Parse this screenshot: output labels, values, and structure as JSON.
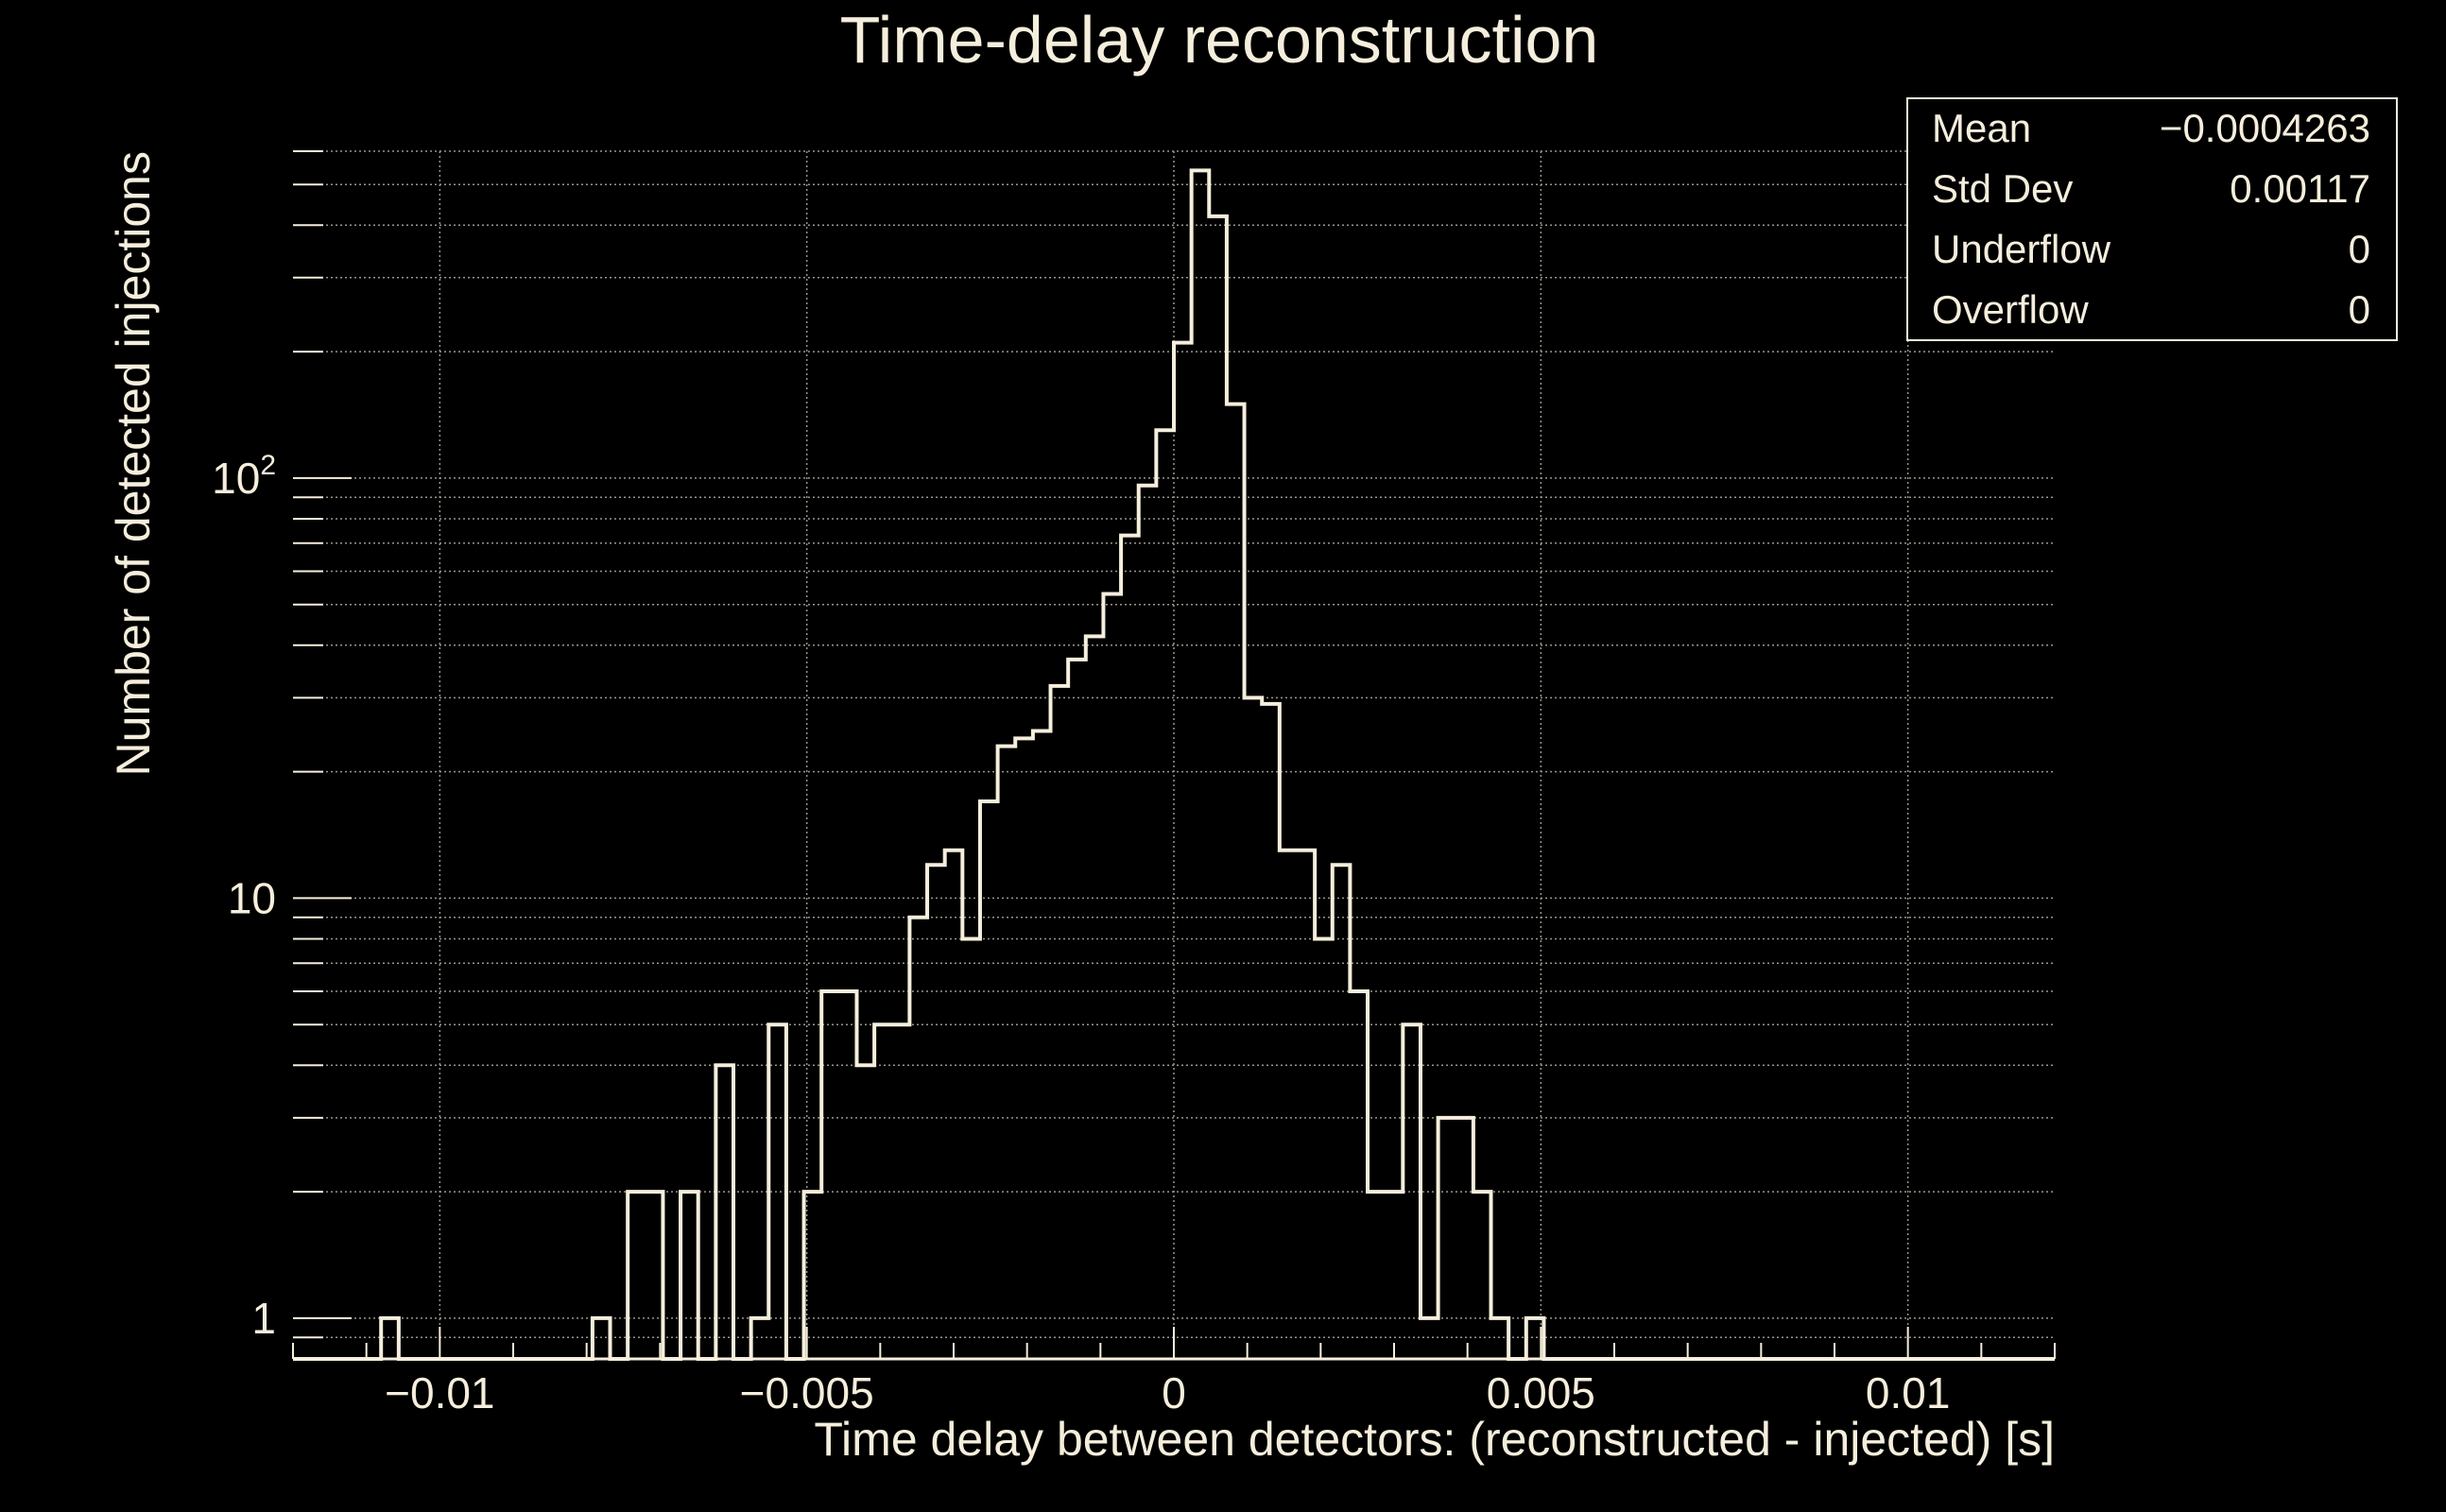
{
  "colors": {
    "background": "#000000",
    "foreground": "#f5eedc",
    "grid": "#9a968a"
  },
  "chart_data": {
    "type": "histogram",
    "title": "Time-delay reconstruction",
    "xlabel": "Time delay between detectors: (reconstructed - injected) [s]",
    "ylabel": "Number of detected injections",
    "xlim": [
      -0.012,
      0.012
    ],
    "ylim": [
      0.8,
      600
    ],
    "y_scale": "log",
    "grid": true,
    "x_ticks": [
      {
        "value": -0.01,
        "label": "−0.01"
      },
      {
        "value": -0.005,
        "label": "−0.005"
      },
      {
        "value": 0,
        "label": "0"
      },
      {
        "value": 0.005,
        "label": "0.005"
      },
      {
        "value": 0.01,
        "label": "0.01"
      }
    ],
    "y_ticks": [
      {
        "value": 1,
        "label": "1"
      },
      {
        "value": 10,
        "label": "10"
      },
      {
        "value": 100,
        "label": "10",
        "exponent": "2"
      }
    ],
    "bin_width": 0.00024,
    "bins_start": -0.012,
    "counts": [
      0,
      0,
      0,
      0,
      0,
      1,
      0,
      0,
      0,
      0,
      0,
      0,
      0,
      0,
      0,
      0,
      0,
      1,
      0,
      2,
      2,
      0,
      2,
      0,
      4,
      0,
      1,
      5,
      0,
      2,
      6,
      6,
      4,
      5,
      5,
      9,
      12,
      13,
      8,
      17,
      23,
      24,
      25,
      32,
      37,
      42,
      53,
      73,
      96,
      130,
      210,
      540,
      420,
      150,
      30,
      29,
      13,
      13,
      8,
      12,
      6,
      2,
      2,
      5,
      1,
      3,
      3,
      2,
      1,
      0,
      1,
      0,
      0,
      0,
      0,
      0,
      0,
      0,
      0,
      0,
      0,
      0,
      0,
      0,
      0,
      0,
      0,
      0,
      0,
      0,
      0,
      0,
      0,
      0,
      0,
      0,
      0,
      0,
      0,
      0
    ],
    "stats_box": {
      "position": "top-right",
      "rows": [
        {
          "label": "Mean",
          "value": "−0.0004263"
        },
        {
          "label": "Std Dev",
          "value": "0.00117"
        },
        {
          "label": "Underflow",
          "value": "0"
        },
        {
          "label": "Overflow",
          "value": "0"
        }
      ]
    }
  }
}
